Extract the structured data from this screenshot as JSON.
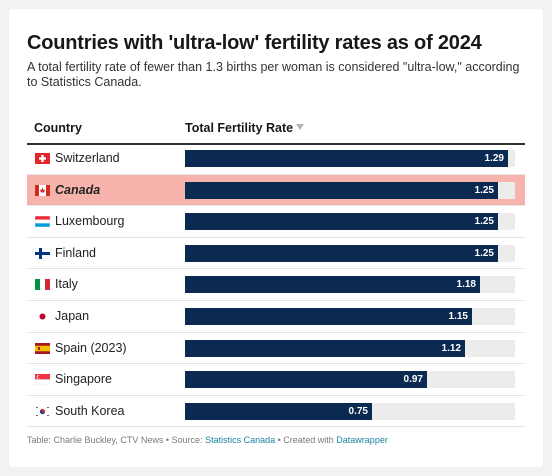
{
  "title": "Countries with 'ultra-low' fertility rates as of 2024",
  "subtitle": "A total fertility rate of fewer than 1.3 births per woman is considered \"ultra-low,\" according to Statistics Canada.",
  "table": {
    "country_header": "Country",
    "rate_header": "Total Fertility Rate",
    "sort_icon": "sort-descending-icon"
  },
  "colors": {
    "bar": "#0a2a52",
    "bar_track": "#ececec",
    "highlight_row": "#f6b4ac"
  },
  "chart_data": {
    "type": "bar",
    "orientation": "horizontal",
    "categories": [
      "Switzerland",
      "Canada",
      "Luxembourg",
      "Finland",
      "Italy",
      "Japan",
      "Spain (2023)",
      "Singapore",
      "South Korea"
    ],
    "values": [
      1.29,
      1.25,
      1.25,
      1.25,
      1.18,
      1.15,
      1.12,
      0.97,
      0.75
    ],
    "value_labels": [
      "1.29",
      "1.25",
      "1.25",
      "1.25",
      "1.18",
      "1.15",
      "1.12",
      "0.97",
      "0.75"
    ],
    "highlighted": "Canada",
    "xlim": [
      0,
      1.32
    ],
    "title": "Countries with 'ultra-low' fertility rates as of 2024",
    "xlabel": "Total Fertility Rate",
    "ylabel": "Country",
    "flag_icons": [
      "switzerland-flag-icon",
      "canada-flag-icon",
      "luxembourg-flag-icon",
      "finland-flag-icon",
      "italy-flag-icon",
      "japan-flag-icon",
      "spain-flag-icon",
      "singapore-flag-icon",
      "south-korea-flag-icon"
    ]
  },
  "footer": {
    "prefix": "Table: Charlie Buckley, CTV News • Source: ",
    "source_link": "Statistics Canada",
    "middle": " • Created with ",
    "tool_link": "Datawrapper"
  }
}
